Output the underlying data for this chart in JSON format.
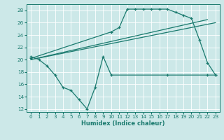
{
  "line1_x": [
    0,
    1,
    2,
    3,
    4,
    5,
    6,
    7,
    8,
    9,
    10,
    17,
    22,
    23
  ],
  "line1_y": [
    20.5,
    20.0,
    19.0,
    17.5,
    15.5,
    15.0,
    13.5,
    12.0,
    15.5,
    20.5,
    17.5,
    17.5,
    17.5,
    17.5
  ],
  "line2_x": [
    0,
    10,
    11,
    12,
    13,
    14,
    15,
    16,
    17,
    18,
    19,
    20,
    21,
    22,
    23
  ],
  "line2_y": [
    20.2,
    24.5,
    25.2,
    28.2,
    28.2,
    28.2,
    28.2,
    28.2,
    28.2,
    27.7,
    27.2,
    26.7,
    23.2,
    19.5,
    17.5
  ],
  "line3_x": [
    0,
    22
  ],
  "line3_y": [
    20.0,
    26.5
  ],
  "line4_x": [
    0,
    23
  ],
  "line4_y": [
    20.0,
    26.0
  ],
  "color": "#1a7a6e",
  "bg_color": "#cce8e8",
  "grid_color": "#ffffff",
  "xlabel": "Humidex (Indice chaleur)",
  "ylim": [
    11.5,
    29.0
  ],
  "xlim": [
    -0.5,
    23.5
  ],
  "yticks": [
    12,
    14,
    16,
    18,
    20,
    22,
    24,
    26,
    28
  ],
  "xticks": [
    0,
    1,
    2,
    3,
    4,
    5,
    6,
    7,
    8,
    9,
    10,
    11,
    12,
    13,
    14,
    15,
    16,
    17,
    18,
    19,
    20,
    21,
    22,
    23
  ]
}
